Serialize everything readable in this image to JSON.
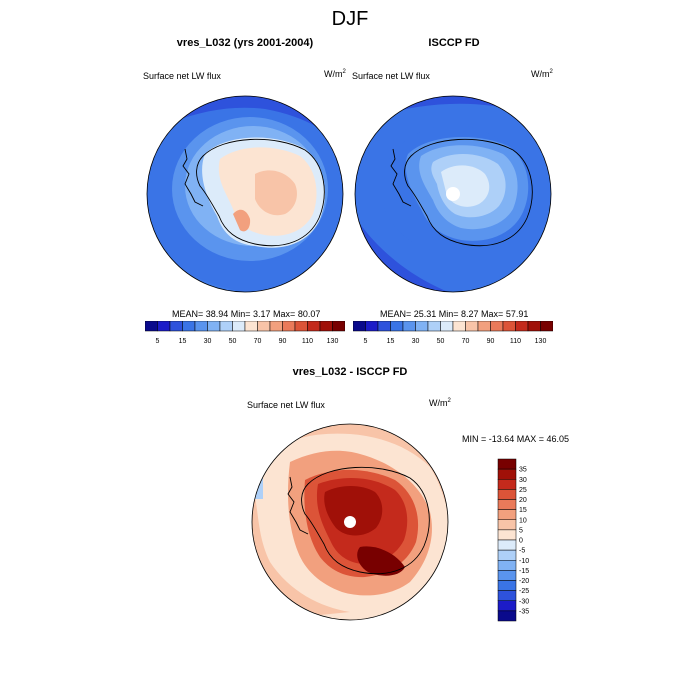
{
  "title": "DJF",
  "panels": {
    "model": {
      "title": "vres_L032 (yrs 2001-2004)",
      "variable": "Surface net LW flux",
      "units": "W/m",
      "units_exp": "2",
      "stats": "MEAN=  38.94  Min=   3.17  Max=  80.07"
    },
    "obs": {
      "title": "ISCCP FD",
      "variable": "Surface net LW flux",
      "units": "W/m",
      "units_exp": "2",
      "stats": "MEAN=  25.31  Min=   8.27  Max=  57.91"
    },
    "diff": {
      "title": "vres_L032 - ISCCP FD",
      "variable": "Surface net LW flux",
      "units": "W/m",
      "units_exp": "2",
      "stats": "MIN = -13.64 MAX =  46.05"
    }
  },
  "colorbar_abs": {
    "colors": [
      "#0a0a8c",
      "#1c1cc8",
      "#2e52dc",
      "#3a74e6",
      "#5a94ee",
      "#80b2f4",
      "#aed0f8",
      "#dcebfa",
      "#fce4d2",
      "#f8c4a8",
      "#f2a07e",
      "#ea7a5a",
      "#dc5438",
      "#c42a1c",
      "#a01008",
      "#780000"
    ],
    "labels": [
      "5",
      "15",
      "30",
      "50",
      "70",
      "90",
      "110",
      "130"
    ]
  },
  "colorbar_diff": {
    "colors": [
      "#780000",
      "#a01008",
      "#c42a1c",
      "#dc5438",
      "#ea7a5a",
      "#f2a07e",
      "#f8c4a8",
      "#fce4d2",
      "#dcebfa",
      "#aed0f8",
      "#80b2f4",
      "#5a94ee",
      "#3a74e6",
      "#2e52dc",
      "#1c1cc8",
      "#0a0a8c"
    ],
    "labels": [
      "35",
      "30",
      "25",
      "20",
      "15",
      "10",
      "5",
      "0",
      "-5",
      "-10",
      "-15",
      "-20",
      "-25",
      "-30",
      "-35"
    ]
  }
}
